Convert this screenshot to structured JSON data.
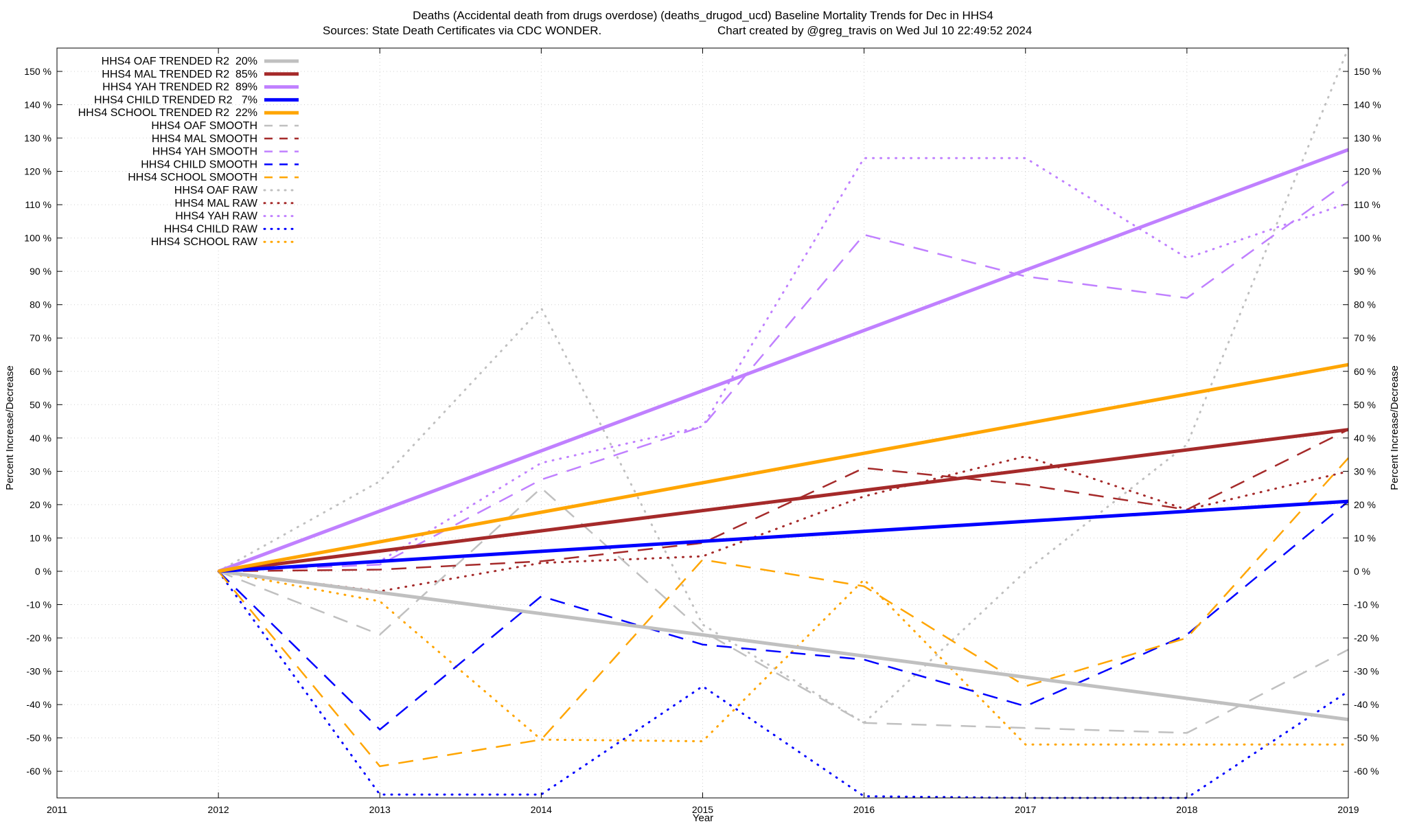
{
  "chart_data": {
    "type": "line",
    "title": "Deaths (Accidental death from drugs overdose) (deaths_drugod_ucd)  Baseline Mortality Trends for Dec in HHS4",
    "subtitle_left": "Sources: State Death Certificates via CDC WONDER.",
    "subtitle_right": "Chart created by @greg_travis on Wed Jul 10 22:49:52 2024",
    "xlabel": "Year",
    "ylabel": "Percent Increase/Decrease",
    "xlim": [
      2011,
      2019
    ],
    "ylim": [
      -68,
      157
    ],
    "x_ticks": [
      "2011",
      "2012",
      "2013",
      "2014",
      "2015",
      "2016",
      "2017",
      "2018",
      "2019"
    ],
    "y_ticks": [
      {
        "value": 150,
        "label": "150 %"
      },
      {
        "value": 140,
        "label": "140 %"
      },
      {
        "value": 130,
        "label": "130 %"
      },
      {
        "value": 120,
        "label": "120 %"
      },
      {
        "value": 110,
        "label": "110 %"
      },
      {
        "value": 100,
        "label": "100 %"
      },
      {
        "value": 90,
        "label": "90 %"
      },
      {
        "value": 80,
        "label": "80 %"
      },
      {
        "value": 70,
        "label": "70 %"
      },
      {
        "value": 60,
        "label": "60 %"
      },
      {
        "value": 50,
        "label": "50 %"
      },
      {
        "value": 40,
        "label": "40 %"
      },
      {
        "value": 30,
        "label": "30 %"
      },
      {
        "value": 20,
        "label": "20 %"
      },
      {
        "value": 10,
        "label": "10 %"
      },
      {
        "value": 0,
        "label": "0 %"
      },
      {
        "value": -10,
        "label": "-10 %"
      },
      {
        "value": -20,
        "label": "-20 %"
      },
      {
        "value": -30,
        "label": "-30 %"
      },
      {
        "value": -40,
        "label": "-40 %"
      },
      {
        "value": -50,
        "label": "-50 %"
      },
      {
        "value": -60,
        "label": "-60 %"
      }
    ],
    "grid": true,
    "legend_position": "top-left",
    "series": [
      {
        "name": "HHS4 OAF TRENDED R2  20%",
        "style": "solid",
        "color": "#c0c0c0",
        "x": [
          2012,
          2019
        ],
        "values": [
          0,
          -44.5
        ]
      },
      {
        "name": "HHS4 MAL TRENDED R2  85%",
        "style": "solid",
        "color": "#a52a2a",
        "x": [
          2012,
          2019
        ],
        "values": [
          0,
          42.5
        ]
      },
      {
        "name": "HHS4 YAH TRENDED R2  89%",
        "style": "solid",
        "color": "#c080ff",
        "x": [
          2012,
          2019
        ],
        "values": [
          0,
          126.5
        ]
      },
      {
        "name": "HHS4 CHILD TRENDED R2   7%",
        "style": "solid",
        "color": "#0000ff",
        "x": [
          2012,
          2019
        ],
        "values": [
          0,
          21
        ]
      },
      {
        "name": "HHS4 SCHOOL TRENDED R2  22%",
        "style": "solid",
        "color": "#ffa500",
        "x": [
          2012,
          2019
        ],
        "values": [
          0,
          62
        ]
      },
      {
        "name": "HHS4 OAF SMOOTH",
        "style": "dashed",
        "color": "#c0c0c0",
        "x": [
          2012,
          2013,
          2014,
          2015,
          2016,
          2017,
          2018,
          2019
        ],
        "values": [
          0,
          -19,
          25,
          -18,
          -45.5,
          -47,
          -48.5,
          -23.5
        ]
      },
      {
        "name": "HHS4 MAL SMOOTH",
        "style": "dashed",
        "color": "#a52a2a",
        "x": [
          2012,
          2013,
          2014,
          2015,
          2016,
          2017,
          2018,
          2019
        ],
        "values": [
          0,
          0.5,
          3,
          8.5,
          31,
          26,
          18.5,
          42.5
        ]
      },
      {
        "name": "HHS4 YAH SMOOTH",
        "style": "dashed",
        "color": "#c080ff",
        "x": [
          2012,
          2013,
          2014,
          2015,
          2016,
          2017,
          2018,
          2019
        ],
        "values": [
          0,
          2,
          27.5,
          43.5,
          101,
          88.5,
          82,
          117
        ]
      },
      {
        "name": "HHS4 CHILD SMOOTH",
        "style": "dashed",
        "color": "#0000ff",
        "x": [
          2012,
          2013,
          2014,
          2015,
          2016,
          2017,
          2018,
          2019
        ],
        "values": [
          0,
          -47.5,
          -7.5,
          -22,
          -26.5,
          -40.5,
          -19,
          21
        ]
      },
      {
        "name": "HHS4 SCHOOL SMOOTH",
        "style": "dashed",
        "color": "#ffa500",
        "x": [
          2012,
          2013,
          2014,
          2015,
          2016,
          2017,
          2018,
          2019
        ],
        "values": [
          0,
          -58.5,
          -50.5,
          3.5,
          -4.5,
          -34.5,
          -20,
          34
        ]
      },
      {
        "name": "HHS4 OAF RAW",
        "style": "dotted",
        "color": "#c0c0c0",
        "x": [
          2012,
          2013,
          2014,
          2015,
          2016,
          2017,
          2018,
          2019
        ],
        "values": [
          0,
          27,
          79,
          -16,
          -45.5,
          0,
          38,
          157
        ]
      },
      {
        "name": "HHS4 MAL RAW",
        "style": "dotted",
        "color": "#a52a2a",
        "x": [
          2012,
          2013,
          2014,
          2015,
          2016,
          2017,
          2018,
          2019
        ],
        "values": [
          0,
          -6,
          2.5,
          4.5,
          22.5,
          34.5,
          18.5,
          30
        ]
      },
      {
        "name": "HHS4 YAH RAW",
        "style": "dotted",
        "color": "#c080ff",
        "x": [
          2012,
          2013,
          2014,
          2015,
          2016,
          2017,
          2018,
          2019
        ],
        "values": [
          0,
          3,
          32.5,
          43.5,
          124,
          124,
          94,
          110.5
        ]
      },
      {
        "name": "HHS4 CHILD RAW",
        "style": "dotted",
        "color": "#0000ff",
        "x": [
          2012,
          2013,
          2014,
          2015,
          2016,
          2017,
          2018,
          2019
        ],
        "values": [
          0,
          -67,
          -67,
          -34.5,
          -67.5,
          -68,
          -68,
          -36
        ]
      },
      {
        "name": "HHS4 SCHOOL RAW",
        "style": "dotted",
        "color": "#ffa500",
        "x": [
          2012,
          2013,
          2014,
          2015,
          2016,
          2017,
          2018,
          2019
        ],
        "values": [
          0,
          -9,
          -50.5,
          -51,
          -2.5,
          -52,
          -52,
          -52
        ]
      }
    ]
  }
}
